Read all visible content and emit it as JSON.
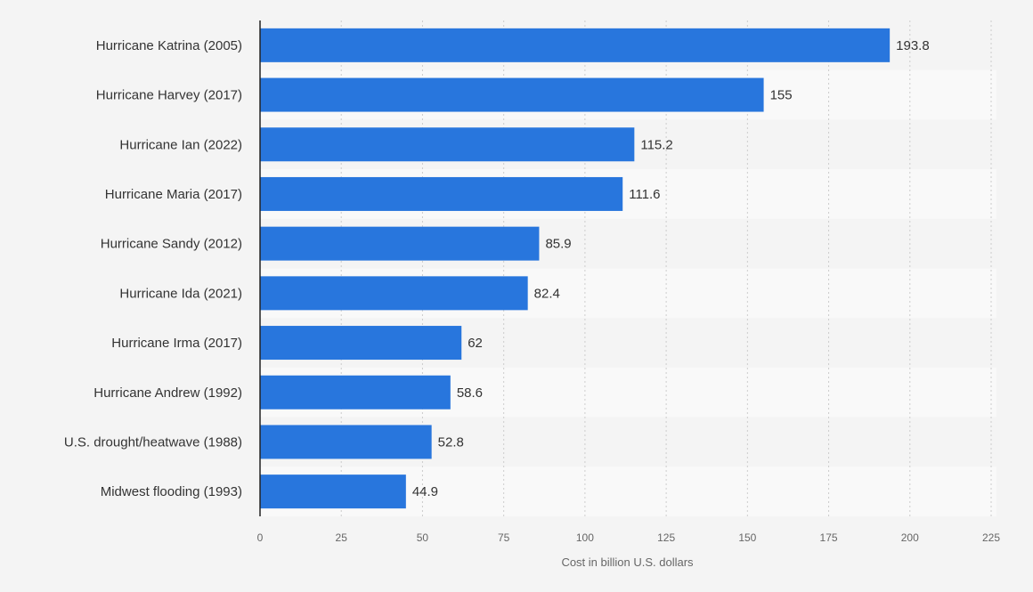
{
  "chart_data": {
    "type": "bar",
    "orientation": "horizontal",
    "categories": [
      "Hurricane Katrina (2005)",
      "Hurricane Harvey (2017)",
      "Hurricane Ian (2022)",
      "Hurricane Maria (2017)",
      "Hurricane Sandy (2012)",
      "Hurricane Ida (2021)",
      "Hurricane Irma (2017)",
      "Hurricane Andrew (1992)",
      "U.S. drought/heatwave (1988)",
      "Midwest flooding (1993)"
    ],
    "values": [
      193.8,
      155,
      115.2,
      111.6,
      85.9,
      82.4,
      62,
      58.6,
      52.8,
      44.9
    ],
    "value_labels": [
      "193.8",
      "155",
      "115.2",
      "111.6",
      "85.9",
      "82.4",
      "62",
      "58.6",
      "52.8",
      "44.9"
    ],
    "xlabel": "Cost in billion U.S. dollars",
    "ylabel": "",
    "xlim": [
      0,
      225
    ],
    "xticks": [
      "0",
      "25",
      "50",
      "75",
      "100",
      "125",
      "150",
      "175",
      "200",
      "225"
    ],
    "grid": true,
    "legend": "none",
    "colors": {
      "bar": "#2876dd",
      "background": "#f4f4f4",
      "band": "#f9f9f9",
      "grid": "#cccccc",
      "axis": "#222222"
    }
  }
}
